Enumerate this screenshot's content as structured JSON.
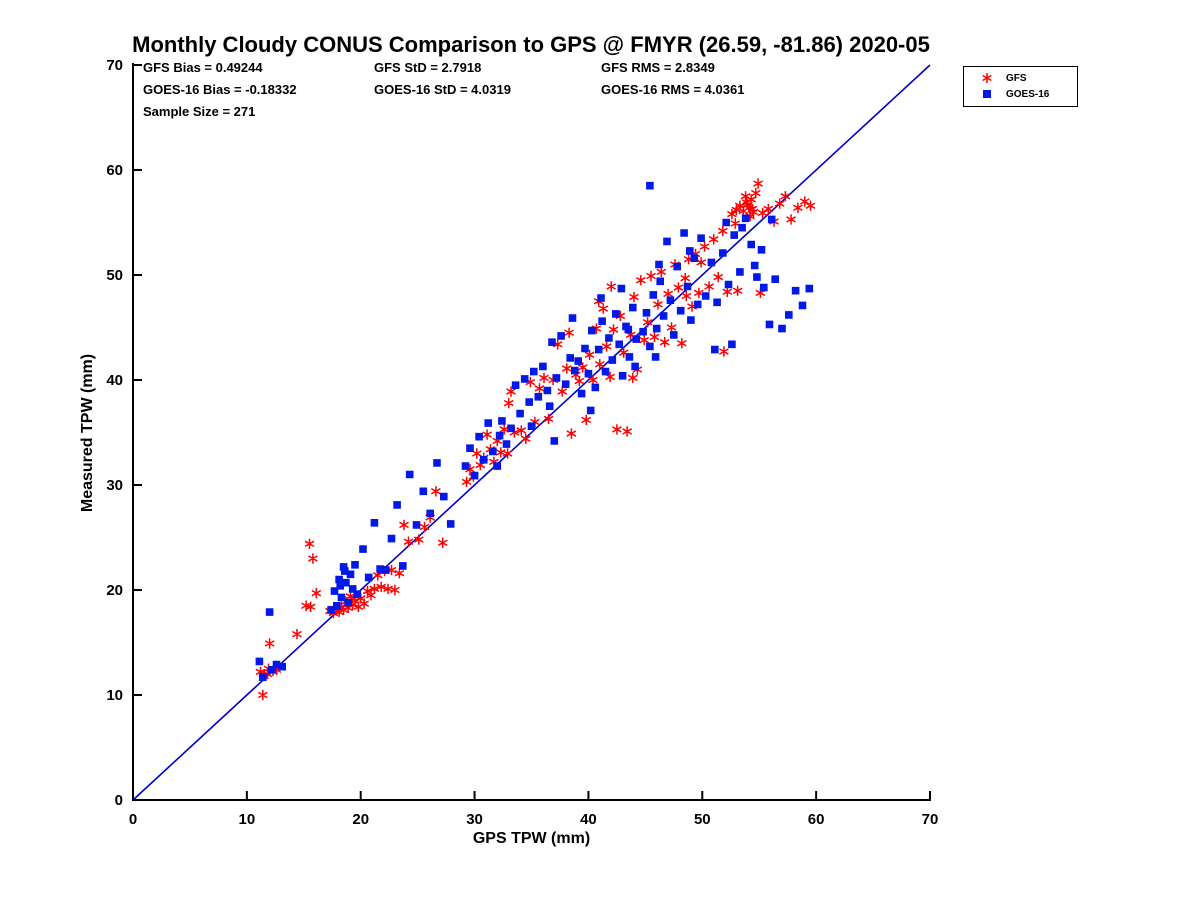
{
  "title": "Monthly Cloudy CONUS Comparison to GPS @ FMYR (26.59, -81.86) 2020-05",
  "stats": {
    "gfs_bias": "GFS Bias = 0.49244",
    "gfs_std": "GFS StD = 2.7918",
    "gfs_rms": "GFS RMS = 2.8349",
    "goes_bias": "GOES-16 Bias = -0.18332",
    "goes_std": "GOES-16 StD = 4.0319",
    "goes_rms": "GOES-16 RMS = 4.0361",
    "sample_size": "Sample Size = 271"
  },
  "legend": {
    "items": [
      {
        "label": "GFS",
        "marker": "asterisk",
        "color": "#FF0000"
      },
      {
        "label": "GOES-16",
        "marker": "square",
        "color": "#0018E8"
      }
    ]
  },
  "chart_data": {
    "type": "scatter",
    "title": "Monthly Cloudy CONUS Comparison to GPS @ FMYR (26.59, -81.86) 2020-05",
    "xlabel": "GPS TPW (mm)",
    "ylabel": "Measured TPW (mm)",
    "xlim": [
      0,
      70
    ],
    "ylim": [
      0,
      70
    ],
    "xticks": [
      0,
      10,
      20,
      30,
      40,
      50,
      60,
      70
    ],
    "yticks": [
      0,
      10,
      20,
      30,
      40,
      50,
      60,
      70
    ],
    "grid": false,
    "legend_position": "outside-top-right",
    "identity_line": {
      "x": [
        0,
        70
      ],
      "y": [
        0,
        70
      ],
      "color": "#0000CC"
    },
    "sample_size": 271,
    "series": [
      {
        "name": "GFS",
        "marker": "asterisk",
        "color": "#FF0000",
        "bias": 0.49244,
        "std": 2.7918,
        "rms": 2.8349,
        "points": [
          [
            11.2,
            12.2
          ],
          [
            11.5,
            11.8
          ],
          [
            11.8,
            12.0
          ],
          [
            11.4,
            10.0
          ],
          [
            12.0,
            14.9
          ],
          [
            11.9,
            12.5
          ],
          [
            12.3,
            12.3
          ],
          [
            12.6,
            12.4
          ],
          [
            14.4,
            15.8
          ],
          [
            15.2,
            18.5
          ],
          [
            15.5,
            24.4
          ],
          [
            15.8,
            23.0
          ],
          [
            15.6,
            18.4
          ],
          [
            16.1,
            19.7
          ],
          [
            17.3,
            18.0
          ],
          [
            17.6,
            17.8
          ],
          [
            17.9,
            18.2
          ],
          [
            18.1,
            17.9
          ],
          [
            18.3,
            18.4
          ],
          [
            18.5,
            18.1
          ],
          [
            18.7,
            18.9
          ],
          [
            18.9,
            18.3
          ],
          [
            19.1,
            19.4
          ],
          [
            19.3,
            18.6
          ],
          [
            19.5,
            19.0
          ],
          [
            19.8,
            18.4
          ],
          [
            20.0,
            19.2
          ],
          [
            20.3,
            18.7
          ],
          [
            20.6,
            19.9
          ],
          [
            20.9,
            19.5
          ],
          [
            21.2,
            20.1
          ],
          [
            21.5,
            21.4
          ],
          [
            21.8,
            20.3
          ],
          [
            22.1,
            21.8
          ],
          [
            22.4,
            20.1
          ],
          [
            22.7,
            21.9
          ],
          [
            23.0,
            20.0
          ],
          [
            23.4,
            21.6
          ],
          [
            23.8,
            26.2
          ],
          [
            24.2,
            24.6
          ],
          [
            25.1,
            24.8
          ],
          [
            25.6,
            26.0
          ],
          [
            26.1,
            26.9
          ],
          [
            26.6,
            29.4
          ],
          [
            27.2,
            24.5
          ],
          [
            29.3,
            30.3
          ],
          [
            29.6,
            31.5
          ],
          [
            29.9,
            30.8
          ],
          [
            30.2,
            33.0
          ],
          [
            30.5,
            31.9
          ],
          [
            30.8,
            32.6
          ],
          [
            31.1,
            34.8
          ],
          [
            31.4,
            33.4
          ],
          [
            31.7,
            32.2
          ],
          [
            32.0,
            34.2
          ],
          [
            32.3,
            33.1
          ],
          [
            32.6,
            35.3
          ],
          [
            32.9,
            33.0
          ],
          [
            33.2,
            38.9
          ],
          [
            33.5,
            35.0
          ],
          [
            33.0,
            37.8
          ],
          [
            34.1,
            35.2
          ],
          [
            34.5,
            34.4
          ],
          [
            34.9,
            39.8
          ],
          [
            35.3,
            36.0
          ],
          [
            35.7,
            39.2
          ],
          [
            36.1,
            40.2
          ],
          [
            36.5,
            36.3
          ],
          [
            36.9,
            40.0
          ],
          [
            37.3,
            43.4
          ],
          [
            37.7,
            38.9
          ],
          [
            38.1,
            41.1
          ],
          [
            38.5,
            34.9
          ],
          [
            38.9,
            40.5
          ],
          [
            38.3,
            44.5
          ],
          [
            39.2,
            39.9
          ],
          [
            39.5,
            41.2
          ],
          [
            39.8,
            36.2
          ],
          [
            40.1,
            42.4
          ],
          [
            40.4,
            40.0
          ],
          [
            40.7,
            44.9
          ],
          [
            41.0,
            41.5
          ],
          [
            41.3,
            46.8
          ],
          [
            41.6,
            43.2
          ],
          [
            41.9,
            40.3
          ],
          [
            42.2,
            44.8
          ],
          [
            42.5,
            35.3
          ],
          [
            42.8,
            46.1
          ],
          [
            43.1,
            42.6
          ],
          [
            43.4,
            35.1
          ],
          [
            43.7,
            44.3
          ],
          [
            44.0,
            47.9
          ],
          [
            44.3,
            41.0
          ],
          [
            44.6,
            49.5
          ],
          [
            44.9,
            43.8
          ],
          [
            43.9,
            40.2
          ],
          [
            42.0,
            48.9
          ],
          [
            40.9,
            47.5
          ],
          [
            45.2,
            45.5
          ],
          [
            45.5,
            49.9
          ],
          [
            45.8,
            44.1
          ],
          [
            46.1,
            47.2
          ],
          [
            46.4,
            50.3
          ],
          [
            46.7,
            43.6
          ],
          [
            47.0,
            48.2
          ],
          [
            47.3,
            45.0
          ],
          [
            47.6,
            51.0
          ],
          [
            47.9,
            48.8
          ],
          [
            48.2,
            43.5
          ],
          [
            48.5,
            49.7
          ],
          [
            48.8,
            51.5
          ],
          [
            49.1,
            47.0
          ],
          [
            49.4,
            52.0
          ],
          [
            49.7,
            48.3
          ],
          [
            48.6,
            48.0
          ],
          [
            49.9,
            51.2
          ],
          [
            50.2,
            52.7
          ],
          [
            50.6,
            48.9
          ],
          [
            51.0,
            53.4
          ],
          [
            51.4,
            49.8
          ],
          [
            51.8,
            54.2
          ],
          [
            52.2,
            48.4
          ],
          [
            52.6,
            55.8
          ],
          [
            53.0,
            56.2
          ],
          [
            53.3,
            56.6
          ],
          [
            53.6,
            56.1
          ],
          [
            53.9,
            56.9
          ],
          [
            54.1,
            56.4
          ],
          [
            54.3,
            57.2
          ],
          [
            54.5,
            56.0
          ],
          [
            54.7,
            57.8
          ],
          [
            54.9,
            58.7
          ],
          [
            54.2,
            55.6
          ],
          [
            53.8,
            57.5
          ],
          [
            54.0,
            56.7
          ],
          [
            54.4,
            56.3
          ],
          [
            52.9,
            54.9
          ],
          [
            51.9,
            42.7
          ],
          [
            53.1,
            48.5
          ],
          [
            55.3,
            55.9
          ],
          [
            55.8,
            56.3
          ],
          [
            56.3,
            55.1
          ],
          [
            56.8,
            56.8
          ],
          [
            57.3,
            57.5
          ],
          [
            57.8,
            55.3
          ],
          [
            58.4,
            56.4
          ],
          [
            59.0,
            57.0
          ],
          [
            59.5,
            56.6
          ],
          [
            55.1,
            48.3
          ]
        ]
      },
      {
        "name": "GOES-16",
        "marker": "square",
        "color": "#0018E8",
        "bias": -0.18332,
        "std": 4.0319,
        "rms": 4.0361,
        "points": [
          [
            11.1,
            13.2
          ],
          [
            11.4,
            11.7
          ],
          [
            12.0,
            17.9
          ],
          [
            12.6,
            12.9
          ],
          [
            13.1,
            12.7
          ],
          [
            12.2,
            12.4
          ],
          [
            17.4,
            18.1
          ],
          [
            17.7,
            19.9
          ],
          [
            17.9,
            18.5
          ],
          [
            18.1,
            21.0
          ],
          [
            18.3,
            19.3
          ],
          [
            18.5,
            22.2
          ],
          [
            18.7,
            20.7
          ],
          [
            18.9,
            18.8
          ],
          [
            19.1,
            21.5
          ],
          [
            19.3,
            20.1
          ],
          [
            19.5,
            22.4
          ],
          [
            19.7,
            19.6
          ],
          [
            18.6,
            21.8
          ],
          [
            18.2,
            20.4
          ],
          [
            20.2,
            23.9
          ],
          [
            20.7,
            21.2
          ],
          [
            21.2,
            26.4
          ],
          [
            21.7,
            22.0
          ],
          [
            22.2,
            21.9
          ],
          [
            22.7,
            24.9
          ],
          [
            23.2,
            28.1
          ],
          [
            23.7,
            22.3
          ],
          [
            24.3,
            31.0
          ],
          [
            24.9,
            26.2
          ],
          [
            25.5,
            29.4
          ],
          [
            26.1,
            27.3
          ],
          [
            26.7,
            32.1
          ],
          [
            27.3,
            28.9
          ],
          [
            27.9,
            26.3
          ],
          [
            29.2,
            31.8
          ],
          [
            29.6,
            33.5
          ],
          [
            30.0,
            30.9
          ],
          [
            30.4,
            34.6
          ],
          [
            30.8,
            32.4
          ],
          [
            31.2,
            35.9
          ],
          [
            31.6,
            33.2
          ],
          [
            32.0,
            31.8
          ],
          [
            32.4,
            36.1
          ],
          [
            32.8,
            33.9
          ],
          [
            33.2,
            35.4
          ],
          [
            32.2,
            34.7
          ],
          [
            33.6,
            39.5
          ],
          [
            34.0,
            36.8
          ],
          [
            34.4,
            40.1
          ],
          [
            34.8,
            37.9
          ],
          [
            35.2,
            40.8
          ],
          [
            35.6,
            38.4
          ],
          [
            36.0,
            41.3
          ],
          [
            36.4,
            39.0
          ],
          [
            36.8,
            43.6
          ],
          [
            37.2,
            40.2
          ],
          [
            37.6,
            44.2
          ],
          [
            38.0,
            39.6
          ],
          [
            38.4,
            42.1
          ],
          [
            38.8,
            40.9
          ],
          [
            37.0,
            34.2
          ],
          [
            36.6,
            37.5
          ],
          [
            35.0,
            35.6
          ],
          [
            38.6,
            45.9
          ],
          [
            39.1,
            41.8
          ],
          [
            39.4,
            38.7
          ],
          [
            39.7,
            43.0
          ],
          [
            40.0,
            40.6
          ],
          [
            40.3,
            44.7
          ],
          [
            40.6,
            39.3
          ],
          [
            40.9,
            42.9
          ],
          [
            41.2,
            45.6
          ],
          [
            41.5,
            40.8
          ],
          [
            41.8,
            44.0
          ],
          [
            42.1,
            41.9
          ],
          [
            42.4,
            46.3
          ],
          [
            42.7,
            43.4
          ],
          [
            43.0,
            40.4
          ],
          [
            43.3,
            45.1
          ],
          [
            43.6,
            42.2
          ],
          [
            43.9,
            46.9
          ],
          [
            44.2,
            43.9
          ],
          [
            45.4,
            58.5
          ],
          [
            44.8,
            44.6
          ],
          [
            40.2,
            37.1
          ],
          [
            41.1,
            47.8
          ],
          [
            42.9,
            48.7
          ],
          [
            43.5,
            44.8
          ],
          [
            44.1,
            41.3
          ],
          [
            45.1,
            46.4
          ],
          [
            45.4,
            43.2
          ],
          [
            45.7,
            48.1
          ],
          [
            46.0,
            44.9
          ],
          [
            46.3,
            49.4
          ],
          [
            46.6,
            46.1
          ],
          [
            46.9,
            53.2
          ],
          [
            47.2,
            47.6
          ],
          [
            47.5,
            44.3
          ],
          [
            47.8,
            50.8
          ],
          [
            48.1,
            46.6
          ],
          [
            48.4,
            54.0
          ],
          [
            48.7,
            48.9
          ],
          [
            49.0,
            45.7
          ],
          [
            49.3,
            51.6
          ],
          [
            49.6,
            47.2
          ],
          [
            49.9,
            53.5
          ],
          [
            48.9,
            52.3
          ],
          [
            46.2,
            51.0
          ],
          [
            45.9,
            42.2
          ],
          [
            50.3,
            48.0
          ],
          [
            50.8,
            51.2
          ],
          [
            51.3,
            47.4
          ],
          [
            51.8,
            52.1
          ],
          [
            52.3,
            49.1
          ],
          [
            52.8,
            53.8
          ],
          [
            53.3,
            50.3
          ],
          [
            53.8,
            55.4
          ],
          [
            54.3,
            52.9
          ],
          [
            54.8,
            49.8
          ],
          [
            52.1,
            55.0
          ],
          [
            53.5,
            54.5
          ],
          [
            54.6,
            50.9
          ],
          [
            51.1,
            42.9
          ],
          [
            52.6,
            43.4
          ],
          [
            55.4,
            48.8
          ],
          [
            55.9,
            45.3
          ],
          [
            56.4,
            49.6
          ],
          [
            57.0,
            44.9
          ],
          [
            57.6,
            46.2
          ],
          [
            58.2,
            48.5
          ],
          [
            58.8,
            47.1
          ],
          [
            59.4,
            48.7
          ],
          [
            55.2,
            52.4
          ],
          [
            56.1,
            55.3
          ]
        ]
      }
    ]
  }
}
